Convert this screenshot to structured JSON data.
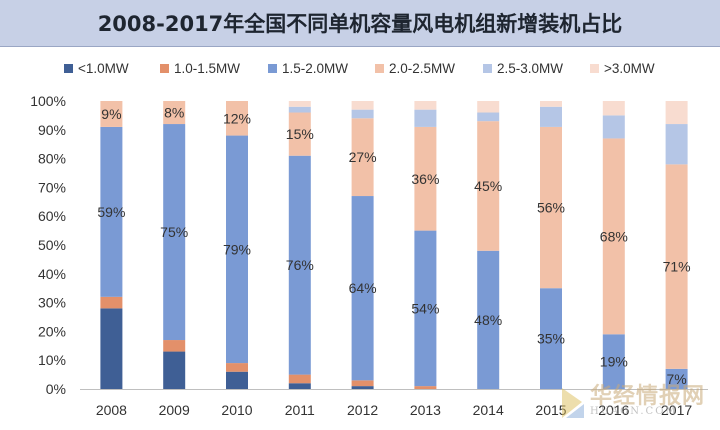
{
  "title": "2008-2017年全国不同单机容量风电机组新增装机占比",
  "watermark": {
    "brand": "华经情报网",
    "sub": "HUAON.COM"
  },
  "chart_data": {
    "type": "bar",
    "stacked": true,
    "percent": true,
    "categories": [
      "2008",
      "2009",
      "2010",
      "2011",
      "2012",
      "2013",
      "2014",
      "2015",
      "2016",
      "2017"
    ],
    "ylim": [
      0,
      100
    ],
    "yticks": [
      "0%",
      "10%",
      "20%",
      "30%",
      "40%",
      "50%",
      "60%",
      "70%",
      "80%",
      "90%",
      "100%"
    ],
    "legend_position": "top",
    "series": [
      {
        "name": "<1.0MW",
        "color": "#3f5f95",
        "values": [
          28,
          13,
          6,
          2,
          1,
          0,
          0,
          0,
          0,
          0
        ]
      },
      {
        "name": "1.0-1.5MW",
        "color": "#e3906a",
        "values": [
          4,
          4,
          3,
          3,
          2,
          1,
          0,
          0,
          0,
          0
        ]
      },
      {
        "name": "1.5-2.0MW",
        "color": "#7a9ad4",
        "values": [
          59,
          75,
          79,
          76,
          64,
          54,
          48,
          35,
          19,
          7
        ]
      },
      {
        "name": "2.0-2.5MW",
        "color": "#f2c1a8",
        "values": [
          9,
          8,
          12,
          15,
          27,
          36,
          45,
          56,
          68,
          71
        ]
      },
      {
        "name": "2.5-3.0MW",
        "color": "#b5c6e6",
        "values": [
          0,
          0,
          0,
          2,
          3,
          6,
          3,
          7,
          8,
          14
        ]
      },
      {
        "name": ">3.0MW",
        "color": "#f8dcd0",
        "values": [
          0,
          0,
          0,
          2,
          3,
          3,
          4,
          2,
          5,
          8
        ]
      }
    ],
    "data_labels": [
      {
        "category": "2008",
        "series": "1.5-2.0MW",
        "text": "59%"
      },
      {
        "category": "2008",
        "series": "2.0-2.5MW",
        "text": "9%"
      },
      {
        "category": "2009",
        "series": "1.5-2.0MW",
        "text": "75%"
      },
      {
        "category": "2009",
        "series": "2.0-2.5MW",
        "text": "8%"
      },
      {
        "category": "2010",
        "series": "1.5-2.0MW",
        "text": "79%"
      },
      {
        "category": "2010",
        "series": "2.0-2.5MW",
        "text": "12%"
      },
      {
        "category": "2011",
        "series": "1.5-2.0MW",
        "text": "76%"
      },
      {
        "category": "2011",
        "series": "2.0-2.5MW",
        "text": "15%"
      },
      {
        "category": "2012",
        "series": "1.5-2.0MW",
        "text": "64%"
      },
      {
        "category": "2012",
        "series": "2.0-2.5MW",
        "text": "27%"
      },
      {
        "category": "2013",
        "series": "1.5-2.0MW",
        "text": "54%"
      },
      {
        "category": "2013",
        "series": "2.0-2.5MW",
        "text": "36%"
      },
      {
        "category": "2014",
        "series": "1.5-2.0MW",
        "text": "48%"
      },
      {
        "category": "2014",
        "series": "2.0-2.5MW",
        "text": "45%"
      },
      {
        "category": "2015",
        "series": "1.5-2.0MW",
        "text": "35%"
      },
      {
        "category": "2015",
        "series": "2.0-2.5MW",
        "text": "56%"
      },
      {
        "category": "2016",
        "series": "1.5-2.0MW",
        "text": "19%"
      },
      {
        "category": "2016",
        "series": "2.0-2.5MW",
        "text": "68%"
      },
      {
        "category": "2017",
        "series": "1.5-2.0MW",
        "text": "7%"
      },
      {
        "category": "2017",
        "series": "2.0-2.5MW",
        "text": "71%"
      }
    ]
  }
}
